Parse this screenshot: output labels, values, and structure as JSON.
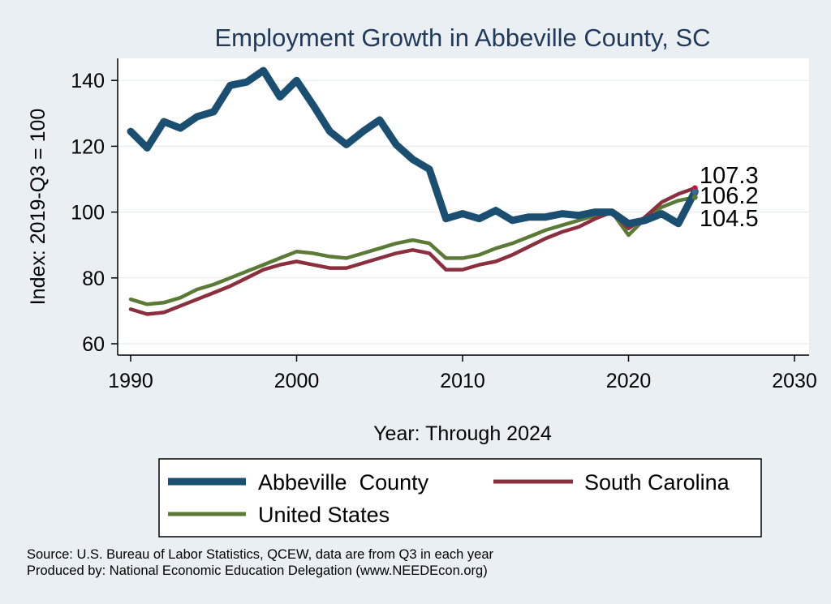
{
  "chart_data": {
    "type": "line",
    "title": "Employment Growth in Abbeville County, SC",
    "xlabel": "Year: Through 2024",
    "ylabel": "Index: 2019-Q3 = 100",
    "xlim": [
      1990,
      2030
    ],
    "ylim": [
      57,
      147
    ],
    "xticks": [
      1990,
      2000,
      2010,
      2020,
      2030
    ],
    "yticks": [
      60,
      80,
      100,
      120,
      140
    ],
    "grid": true,
    "legend_position": "bottom",
    "x": [
      1990,
      1991,
      1992,
      1993,
      1994,
      1995,
      1996,
      1997,
      1998,
      1999,
      2000,
      2001,
      2002,
      2003,
      2004,
      2005,
      2006,
      2007,
      2008,
      2009,
      2010,
      2011,
      2012,
      2013,
      2014,
      2015,
      2016,
      2017,
      2018,
      2019,
      2020,
      2021,
      2022,
      2023,
      2024
    ],
    "series": [
      {
        "name": "Abbeville  County",
        "color": "#1b4f72",
        "values": [
          124.5,
          119.5,
          127.5,
          125.5,
          129,
          130.5,
          138.5,
          139.5,
          143,
          135,
          140,
          132.5,
          124.5,
          120.5,
          124.5,
          128,
          120.5,
          116,
          113,
          98,
          99.5,
          98,
          100.5,
          97.5,
          98.5,
          98.5,
          99.5,
          99,
          100,
          100,
          96.5,
          97.5,
          99.5,
          96.5,
          106.2
        ]
      },
      {
        "name": "South Carolina",
        "color": "#8b2f3e",
        "values": [
          70.5,
          69,
          69.5,
          71.5,
          73.5,
          75.5,
          77.5,
          80,
          82.5,
          84,
          85,
          84,
          83,
          83,
          84.5,
          86,
          87.5,
          88.5,
          87.5,
          82.5,
          82.5,
          84,
          85,
          87,
          89.5,
          92,
          94,
          95.5,
          98,
          100,
          95,
          98.5,
          103,
          105.5,
          107.3
        ]
      },
      {
        "name": "United States",
        "color": "#5a7a36",
        "values": [
          73.5,
          72,
          72.5,
          74,
          76.5,
          78,
          80,
          82,
          84,
          86,
          88,
          87.5,
          86.5,
          86,
          87.5,
          89,
          90.5,
          91.5,
          90.5,
          86,
          86,
          87,
          89,
          90.5,
          92.5,
          94.5,
          96,
          97.5,
          99,
          100,
          93,
          98,
          101.5,
          103.5,
          104.5
        ]
      }
    ],
    "end_labels": [
      "107.3",
      "106.2",
      "104.5"
    ]
  },
  "source_lines": [
    "Source: U.S. Bureau of Labor Statistics, QCEW, data are from Q3 in each year",
    "Produced by: National Economic Education Delegation (www.NEEDEcon.org)"
  ],
  "colors": {
    "background": "#e9eff3",
    "plot_background": "#ffffff",
    "title": "#1f3a5a",
    "gridline": "#e3e8ec"
  }
}
